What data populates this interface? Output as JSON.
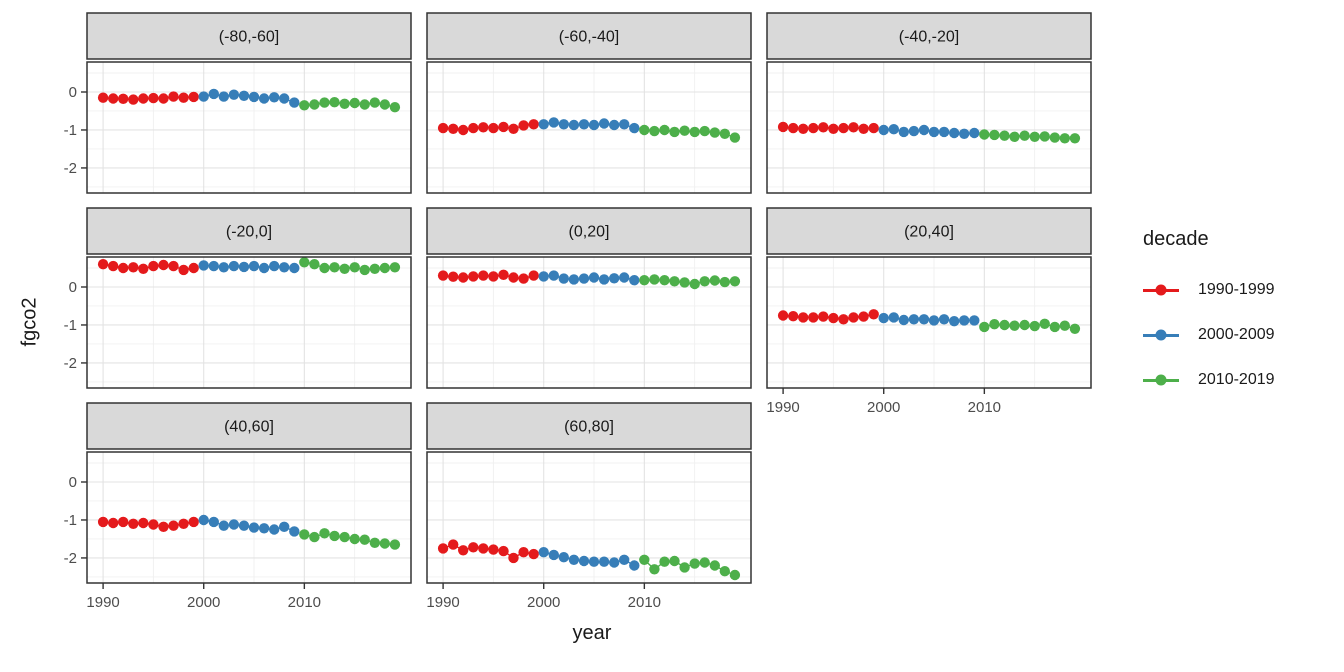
{
  "chart_data": {
    "type": "scatter",
    "title": "",
    "xlabel": "year",
    "ylabel": "fgco2",
    "grid": "major+minor",
    "legend_position": "right",
    "facet_variable": "latitude band",
    "x_range": [
      1988.4,
      2020.6
    ],
    "y_range": [
      -2.66,
      0.79
    ],
    "x_ticks": [
      1990,
      2000,
      2010
    ],
    "x_tick_labels": [
      "1990",
      "2000",
      "2010"
    ],
    "x_minor_ticks": [
      1995,
      2005,
      2015
    ],
    "y_ticks": [
      0,
      -1,
      -2
    ],
    "y_tick_labels": [
      "0",
      "-1",
      "-2"
    ],
    "y_minor_ticks": [
      0.5,
      -0.5,
      -1.5,
      -2.5
    ],
    "years_start": 1990,
    "series": [
      {
        "name": "1990-1999",
        "color": "#E41A1C",
        "year_span": [
          1990,
          1999
        ]
      },
      {
        "name": "2000-2009",
        "color": "#377EB8",
        "year_span": [
          2000,
          2009
        ]
      },
      {
        "name": "2010-2019",
        "color": "#4DAF4A",
        "year_span": [
          2010,
          2019
        ]
      }
    ],
    "facets": [
      {
        "label": "(-80,-60]",
        "row": 0,
        "col": 0,
        "show_x_axis": false,
        "values": [
          -0.15,
          -0.17,
          -0.18,
          -0.2,
          -0.17,
          -0.16,
          -0.17,
          -0.12,
          -0.15,
          -0.13,
          -0.12,
          -0.05,
          -0.12,
          -0.07,
          -0.1,
          -0.13,
          -0.17,
          -0.14,
          -0.17,
          -0.28,
          -0.35,
          -0.33,
          -0.28,
          -0.27,
          -0.31,
          -0.29,
          -0.33,
          -0.28,
          -0.33,
          -0.4
        ]
      },
      {
        "label": "(-60,-40]",
        "row": 0,
        "col": 1,
        "show_x_axis": false,
        "values": [
          -0.95,
          -0.97,
          -1.0,
          -0.95,
          -0.93,
          -0.95,
          -0.92,
          -0.97,
          -0.88,
          -0.85,
          -0.85,
          -0.8,
          -0.85,
          -0.87,
          -0.85,
          -0.87,
          -0.83,
          -0.87,
          -0.85,
          -0.95,
          -1.0,
          -1.03,
          -1.0,
          -1.05,
          -1.02,
          -1.05,
          -1.03,
          -1.07,
          -1.1,
          -1.2
        ]
      },
      {
        "label": "(-40,-20]",
        "row": 0,
        "col": 2,
        "show_x_axis": false,
        "values": [
          -0.92,
          -0.95,
          -0.97,
          -0.95,
          -0.93,
          -0.97,
          -0.95,
          -0.93,
          -0.97,
          -0.95,
          -1.0,
          -0.98,
          -1.05,
          -1.03,
          -1.0,
          -1.05,
          -1.05,
          -1.08,
          -1.1,
          -1.08,
          -1.12,
          -1.13,
          -1.15,
          -1.18,
          -1.15,
          -1.18,
          -1.17,
          -1.2,
          -1.22,
          -1.22
        ]
      },
      {
        "label": "(-20,0]",
        "row": 1,
        "col": 0,
        "show_x_axis": false,
        "values": [
          0.6,
          0.55,
          0.5,
          0.52,
          0.48,
          0.55,
          0.58,
          0.55,
          0.45,
          0.5,
          0.57,
          0.55,
          0.52,
          0.55,
          0.53,
          0.55,
          0.5,
          0.55,
          0.52,
          0.5,
          0.65,
          0.6,
          0.5,
          0.52,
          0.48,
          0.52,
          0.45,
          0.48,
          0.5,
          0.52
        ]
      },
      {
        "label": "(0,20]",
        "row": 1,
        "col": 1,
        "show_x_axis": false,
        "values": [
          0.3,
          0.27,
          0.25,
          0.28,
          0.3,
          0.28,
          0.32,
          0.25,
          0.22,
          0.3,
          0.28,
          0.3,
          0.22,
          0.2,
          0.22,
          0.25,
          0.2,
          0.23,
          0.25,
          0.18,
          0.18,
          0.2,
          0.18,
          0.15,
          0.12,
          0.08,
          0.15,
          0.17,
          0.13,
          0.15
        ]
      },
      {
        "label": "(20,40]",
        "row": 1,
        "col": 2,
        "show_x_axis": true,
        "values": [
          -0.75,
          -0.77,
          -0.8,
          -0.8,
          -0.78,
          -0.82,
          -0.85,
          -0.8,
          -0.78,
          -0.72,
          -0.82,
          -0.8,
          -0.87,
          -0.85,
          -0.85,
          -0.88,
          -0.85,
          -0.9,
          -0.88,
          -0.88,
          -1.05,
          -0.98,
          -1.0,
          -1.02,
          -1.0,
          -1.03,
          -0.97,
          -1.05,
          -1.02,
          -1.1
        ]
      },
      {
        "label": "(40,60]",
        "row": 2,
        "col": 0,
        "show_x_axis": true,
        "values": [
          -1.05,
          -1.08,
          -1.05,
          -1.1,
          -1.08,
          -1.12,
          -1.18,
          -1.15,
          -1.1,
          -1.05,
          -1.0,
          -1.05,
          -1.15,
          -1.12,
          -1.15,
          -1.2,
          -1.22,
          -1.25,
          -1.18,
          -1.3,
          -1.38,
          -1.45,
          -1.35,
          -1.42,
          -1.45,
          -1.5,
          -1.52,
          -1.6,
          -1.62,
          -1.65
        ]
      },
      {
        "label": "(60,80]",
        "row": 2,
        "col": 1,
        "show_x_axis": true,
        "values": [
          -1.75,
          -1.65,
          -1.8,
          -1.72,
          -1.75,
          -1.78,
          -1.82,
          -2.0,
          -1.85,
          -1.9,
          -1.85,
          -1.92,
          -1.98,
          -2.05,
          -2.08,
          -2.1,
          -2.1,
          -2.12,
          -2.05,
          -2.2,
          -2.05,
          -2.3,
          -2.1,
          -2.08,
          -2.25,
          -2.15,
          -2.12,
          -2.2,
          -2.35,
          -2.45
        ]
      }
    ],
    "style": {
      "strip_fill": "#d9d9d9",
      "panel_border": "#333333",
      "grid_major": "#e3e3e3",
      "grid_minor": "#f0f0f0",
      "tick_label_color": "#4d4d4d",
      "strip_text_color": "#1a1a1a",
      "point_radius": 5.2
    }
  },
  "legend": {
    "title": "decade",
    "entries": [
      {
        "label": "1990-1999",
        "color": "#E41A1C"
      },
      {
        "label": "2000-2009",
        "color": "#377EB8"
      },
      {
        "label": "2010-2019",
        "color": "#4DAF4A"
      }
    ]
  }
}
